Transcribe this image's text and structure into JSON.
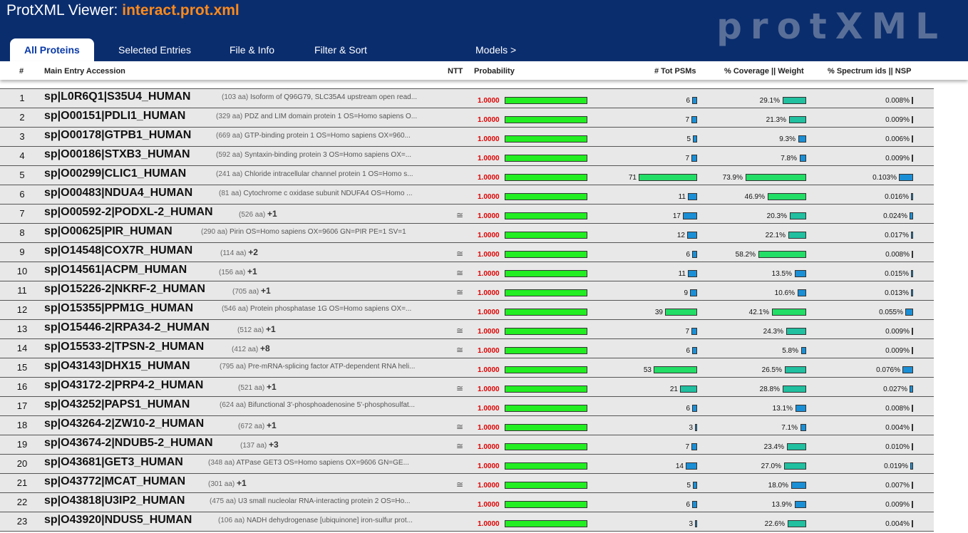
{
  "app": {
    "title_prefix": "ProtXML Viewer: ",
    "file_name": "interact.prot.xml",
    "brand": "protXML"
  },
  "tabs": [
    {
      "label": "All Proteins",
      "active": true
    },
    {
      "label": "Selected Entries",
      "active": false
    },
    {
      "label": "File & Info",
      "active": false
    },
    {
      "label": "Filter & Sort",
      "active": false
    },
    {
      "label": "Models >",
      "active": false
    }
  ],
  "columns": {
    "num": "#",
    "accession": "Main Entry Accession",
    "ntt": "NTT",
    "probability": "Probability",
    "psms": "# Tot PSMs",
    "coverage": "% Coverage || Weight",
    "spectrum": "% Spectrum ids || NSP"
  },
  "colors": {
    "header_bg": "#0a2d6e",
    "title_file": "#ff8a1a",
    "prob_bar": "#22ee22",
    "bar_blue": "#1a8fd6",
    "bar_teal": "#20c0a0",
    "bar_green": "#22dd66",
    "prob_text": "#e00000"
  },
  "rows": [
    {
      "num": "1",
      "accession": "sp|L0R6Q1|S35U4_HUMAN",
      "aa": "(103 aa)",
      "desc": "Isoform of Q96G79, SLC35A4 upstream open read...",
      "plus": "",
      "ntt": "",
      "prob": "1.0000",
      "prob_frac": 1.0,
      "psms": 6,
      "psms_label": "6",
      "coverage": 29.1,
      "coverage_label": "29.1%",
      "spectrum": 0.008,
      "spectrum_label": "0.008%"
    },
    {
      "num": "2",
      "accession": "sp|O00151|PDLI1_HUMAN",
      "aa": "(329 aa)",
      "desc": "PDZ and LIM domain protein 1 OS=Homo sapiens O...",
      "plus": "",
      "ntt": "",
      "prob": "1.0000",
      "prob_frac": 1.0,
      "psms": 7,
      "psms_label": "7",
      "coverage": 21.3,
      "coverage_label": "21.3%",
      "spectrum": 0.009,
      "spectrum_label": "0.009%"
    },
    {
      "num": "3",
      "accession": "sp|O00178|GTPB1_HUMAN",
      "aa": "(669 aa)",
      "desc": "GTP-binding protein 1 OS=Homo sapiens OX=960...",
      "plus": "",
      "ntt": "",
      "prob": "1.0000",
      "prob_frac": 1.0,
      "psms": 5,
      "psms_label": "5",
      "coverage": 9.3,
      "coverage_label": "9.3%",
      "spectrum": 0.006,
      "spectrum_label": "0.006%"
    },
    {
      "num": "4",
      "accession": "sp|O00186|STXB3_HUMAN",
      "aa": "(592 aa)",
      "desc": "Syntaxin-binding protein 3 OS=Homo sapiens OX=...",
      "plus": "",
      "ntt": "",
      "prob": "1.0000",
      "prob_frac": 1.0,
      "psms": 7,
      "psms_label": "7",
      "coverage": 7.8,
      "coverage_label": "7.8%",
      "spectrum": 0.009,
      "spectrum_label": "0.009%"
    },
    {
      "num": "5",
      "accession": "sp|O00299|CLIC1_HUMAN",
      "aa": "(241 aa)",
      "desc": "Chloride intracellular channel protein 1 OS=Homo s...",
      "plus": "",
      "ntt": "",
      "prob": "1.0000",
      "prob_frac": 1.0,
      "psms": 71,
      "psms_label": "71",
      "coverage": 73.9,
      "coverage_label": "73.9%",
      "spectrum": 0.103,
      "spectrum_label": "0.103%"
    },
    {
      "num": "6",
      "accession": "sp|O00483|NDUA4_HUMAN",
      "aa": "(81 aa)",
      "desc": "Cytochrome c oxidase subunit NDUFA4 OS=Homo ...",
      "plus": "",
      "ntt": "",
      "prob": "1.0000",
      "prob_frac": 1.0,
      "psms": 11,
      "psms_label": "11",
      "coverage": 46.9,
      "coverage_label": "46.9%",
      "spectrum": 0.016,
      "spectrum_label": "0.016%"
    },
    {
      "num": "7",
      "accession": "sp|O00592-2|PODXL-2_HUMAN",
      "aa": "(526 aa)",
      "desc": "",
      "plus": "+1",
      "ntt": "≅",
      "prob": "1.0000",
      "prob_frac": 1.0,
      "psms": 17,
      "psms_label": "17",
      "coverage": 20.3,
      "coverage_label": "20.3%",
      "spectrum": 0.024,
      "spectrum_label": "0.024%"
    },
    {
      "num": "8",
      "accession": "sp|O00625|PIR_HUMAN",
      "aa": "(290 aa)",
      "desc": "Pirin OS=Homo sapiens OX=9606 GN=PIR PE=1 SV=1",
      "plus": "",
      "ntt": "",
      "prob": "1.0000",
      "prob_frac": 1.0,
      "psms": 12,
      "psms_label": "12",
      "coverage": 22.1,
      "coverage_label": "22.1%",
      "spectrum": 0.017,
      "spectrum_label": "0.017%"
    },
    {
      "num": "9",
      "accession": "sp|O14548|COX7R_HUMAN",
      "aa": "(114 aa)",
      "desc": "",
      "plus": "+2",
      "ntt": "≅",
      "prob": "1.0000",
      "prob_frac": 1.0,
      "psms": 6,
      "psms_label": "6",
      "coverage": 58.2,
      "coverage_label": "58.2%",
      "spectrum": 0.008,
      "spectrum_label": "0.008%"
    },
    {
      "num": "10",
      "accession": "sp|O14561|ACPM_HUMAN",
      "aa": "(156 aa)",
      "desc": "",
      "plus": "+1",
      "ntt": "≅",
      "prob": "1.0000",
      "prob_frac": 1.0,
      "psms": 11,
      "psms_label": "11",
      "coverage": 13.5,
      "coverage_label": "13.5%",
      "spectrum": 0.015,
      "spectrum_label": "0.015%"
    },
    {
      "num": "11",
      "accession": "sp|O15226-2|NKRF-2_HUMAN",
      "aa": "(705 aa)",
      "desc": "",
      "plus": "+1",
      "ntt": "≅",
      "prob": "1.0000",
      "prob_frac": 1.0,
      "psms": 9,
      "psms_label": "9",
      "coverage": 10.6,
      "coverage_label": "10.6%",
      "spectrum": 0.013,
      "spectrum_label": "0.013%"
    },
    {
      "num": "12",
      "accession": "sp|O15355|PPM1G_HUMAN",
      "aa": "(546 aa)",
      "desc": "Protein phosphatase 1G OS=Homo sapiens OX=...",
      "plus": "",
      "ntt": "",
      "prob": "1.0000",
      "prob_frac": 1.0,
      "psms": 39,
      "psms_label": "39",
      "coverage": 42.1,
      "coverage_label": "42.1%",
      "spectrum": 0.055,
      "spectrum_label": "0.055%"
    },
    {
      "num": "13",
      "accession": "sp|O15446-2|RPA34-2_HUMAN",
      "aa": "(512 aa)",
      "desc": "",
      "plus": "+1",
      "ntt": "≅",
      "prob": "1.0000",
      "prob_frac": 1.0,
      "psms": 7,
      "psms_label": "7",
      "coverage": 24.3,
      "coverage_label": "24.3%",
      "spectrum": 0.009,
      "spectrum_label": "0.009%"
    },
    {
      "num": "14",
      "accession": "sp|O15533-2|TPSN-2_HUMAN",
      "aa": "(412 aa)",
      "desc": "",
      "plus": "+8",
      "ntt": "≅",
      "prob": "1.0000",
      "prob_frac": 1.0,
      "psms": 6,
      "psms_label": "6",
      "coverage": 5.8,
      "coverage_label": "5.8%",
      "spectrum": 0.009,
      "spectrum_label": "0.009%"
    },
    {
      "num": "15",
      "accession": "sp|O43143|DHX15_HUMAN",
      "aa": "(795 aa)",
      "desc": "Pre-mRNA-splicing factor ATP-dependent RNA heli...",
      "plus": "",
      "ntt": "",
      "prob": "1.0000",
      "prob_frac": 1.0,
      "psms": 53,
      "psms_label": "53",
      "coverage": 26.5,
      "coverage_label": "26.5%",
      "spectrum": 0.076,
      "spectrum_label": "0.076%"
    },
    {
      "num": "16",
      "accession": "sp|O43172-2|PRP4-2_HUMAN",
      "aa": "(521 aa)",
      "desc": "",
      "plus": "+1",
      "ntt": "≅",
      "prob": "1.0000",
      "prob_frac": 1.0,
      "psms": 21,
      "psms_label": "21",
      "coverage": 28.8,
      "coverage_label": "28.8%",
      "spectrum": 0.027,
      "spectrum_label": "0.027%"
    },
    {
      "num": "17",
      "accession": "sp|O43252|PAPS1_HUMAN",
      "aa": "(624 aa)",
      "desc": "Bifunctional 3'-phosphoadenosine 5'-phosphosulfat...",
      "plus": "",
      "ntt": "",
      "prob": "1.0000",
      "prob_frac": 1.0,
      "psms": 6,
      "psms_label": "6",
      "coverage": 13.1,
      "coverage_label": "13.1%",
      "spectrum": 0.008,
      "spectrum_label": "0.008%"
    },
    {
      "num": "18",
      "accession": "sp|O43264-2|ZW10-2_HUMAN",
      "aa": "(672 aa)",
      "desc": "",
      "plus": "+1",
      "ntt": "≅",
      "prob": "1.0000",
      "prob_frac": 1.0,
      "psms": 3,
      "psms_label": "3",
      "coverage": 7.1,
      "coverage_label": "7.1%",
      "spectrum": 0.004,
      "spectrum_label": "0.004%"
    },
    {
      "num": "19",
      "accession": "sp|O43674-2|NDUB5-2_HUMAN",
      "aa": "(137 aa)",
      "desc": "",
      "plus": "+3",
      "ntt": "≅",
      "prob": "1.0000",
      "prob_frac": 1.0,
      "psms": 7,
      "psms_label": "7",
      "coverage": 23.4,
      "coverage_label": "23.4%",
      "spectrum": 0.01,
      "spectrum_label": "0.010%"
    },
    {
      "num": "20",
      "accession": "sp|O43681|GET3_HUMAN",
      "aa": "(348 aa)",
      "desc": "ATPase GET3 OS=Homo sapiens OX=9606 GN=GE...",
      "plus": "",
      "ntt": "",
      "prob": "1.0000",
      "prob_frac": 1.0,
      "psms": 14,
      "psms_label": "14",
      "coverage": 27.0,
      "coverage_label": "27.0%",
      "spectrum": 0.019,
      "spectrum_label": "0.019%"
    },
    {
      "num": "21",
      "accession": "sp|O43772|MCAT_HUMAN",
      "aa": "(301 aa)",
      "desc": "",
      "plus": "+1",
      "ntt": "≅",
      "prob": "1.0000",
      "prob_frac": 1.0,
      "psms": 5,
      "psms_label": "5",
      "coverage": 18.0,
      "coverage_label": "18.0%",
      "spectrum": 0.007,
      "spectrum_label": "0.007%"
    },
    {
      "num": "22",
      "accession": "sp|O43818|U3IP2_HUMAN",
      "aa": "(475 aa)",
      "desc": "U3 small nucleolar RNA-interacting protein 2 OS=Ho...",
      "plus": "",
      "ntt": "",
      "prob": "1.0000",
      "prob_frac": 1.0,
      "psms": 6,
      "psms_label": "6",
      "coverage": 13.9,
      "coverage_label": "13.9%",
      "spectrum": 0.009,
      "spectrum_label": "0.009%"
    },
    {
      "num": "23",
      "accession": "sp|O43920|NDUS5_HUMAN",
      "aa": "(106 aa)",
      "desc": "NADH dehydrogenase [ubiquinone] iron-sulfur prot...",
      "plus": "",
      "ntt": "",
      "prob": "1.0000",
      "prob_frac": 1.0,
      "psms": 3,
      "psms_label": "3",
      "coverage": 22.6,
      "coverage_label": "22.6%",
      "spectrum": 0.004,
      "spectrum_label": "0.004%"
    }
  ]
}
